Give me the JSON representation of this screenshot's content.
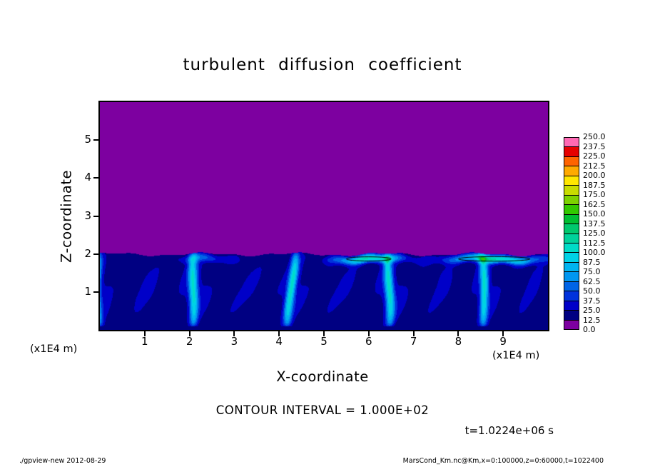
{
  "chart_data": {
    "type": "heatmap",
    "title": "turbulent diffusion coefficient",
    "xlabel": "X-coordinate",
    "ylabel": "Z-coordinate",
    "x_unit": "(x1E4 m)",
    "y_unit": "(x1E4 m)",
    "xlim": [
      0,
      10
    ],
    "ylim": [
      0,
      6
    ],
    "x_ticks": [
      1,
      2,
      3,
      4,
      5,
      6,
      7,
      8,
      9
    ],
    "y_ticks": [
      1,
      2,
      3,
      4,
      5
    ],
    "grid": false,
    "legend_position": "right-colorbar",
    "colorbar": {
      "levels": [
        0.0,
        12.5,
        25.0,
        37.5,
        50.0,
        62.5,
        75.0,
        87.5,
        100.0,
        112.5,
        125.0,
        137.5,
        150.0,
        162.5,
        175.0,
        187.5,
        200.0,
        212.5,
        225.0,
        237.5,
        250.0
      ],
      "colors_low_to_high": [
        "#7d00a0",
        "#000082",
        "#0000c8",
        "#0032dc",
        "#0064e6",
        "#0096f0",
        "#00b4f0",
        "#00d2e6",
        "#00dcc8",
        "#00d29b",
        "#00c86e",
        "#00be32",
        "#32c800",
        "#7dd200",
        "#c8dc00",
        "#ffe600",
        "#ffaa00",
        "#ff6400",
        "#e60000",
        "#ff69b4"
      ]
    },
    "contour_interval_label": "CONTOUR INTERVAL = 1.000E+02",
    "contour_interval": 100.0,
    "time_label": "t=1.0224e+06 s",
    "field_summary": {
      "description": "Turbulent diffusion coefficient field: ~0 (purple, lowest color bin) everywhere above z=2x1E4 m; convective boundary layer below z=2x1E4 m containing about 5 convective cells with dark-blue background values (~12.5-50), narrow cyan plume filaments (~75-112.5), and bright streaks just beneath the inversion near x=6x1E4 m and x=8-9.5x1E4 m that exceed the 100 contour (thin black contour loops).",
      "boundary_height": 2.0,
      "background_value_range": [
        12.5,
        50
      ],
      "filament_value_range": [
        75,
        112.5
      ],
      "max_value_region": "just below z=2 near x=6 and x=8.8 (x1E4 m)"
    }
  },
  "footer": {
    "left": "./gpview-new  2012-08-29",
    "right": "MarsCond_Km.nc@Km,x=0:100000,z=0:60000,t=1022400"
  }
}
